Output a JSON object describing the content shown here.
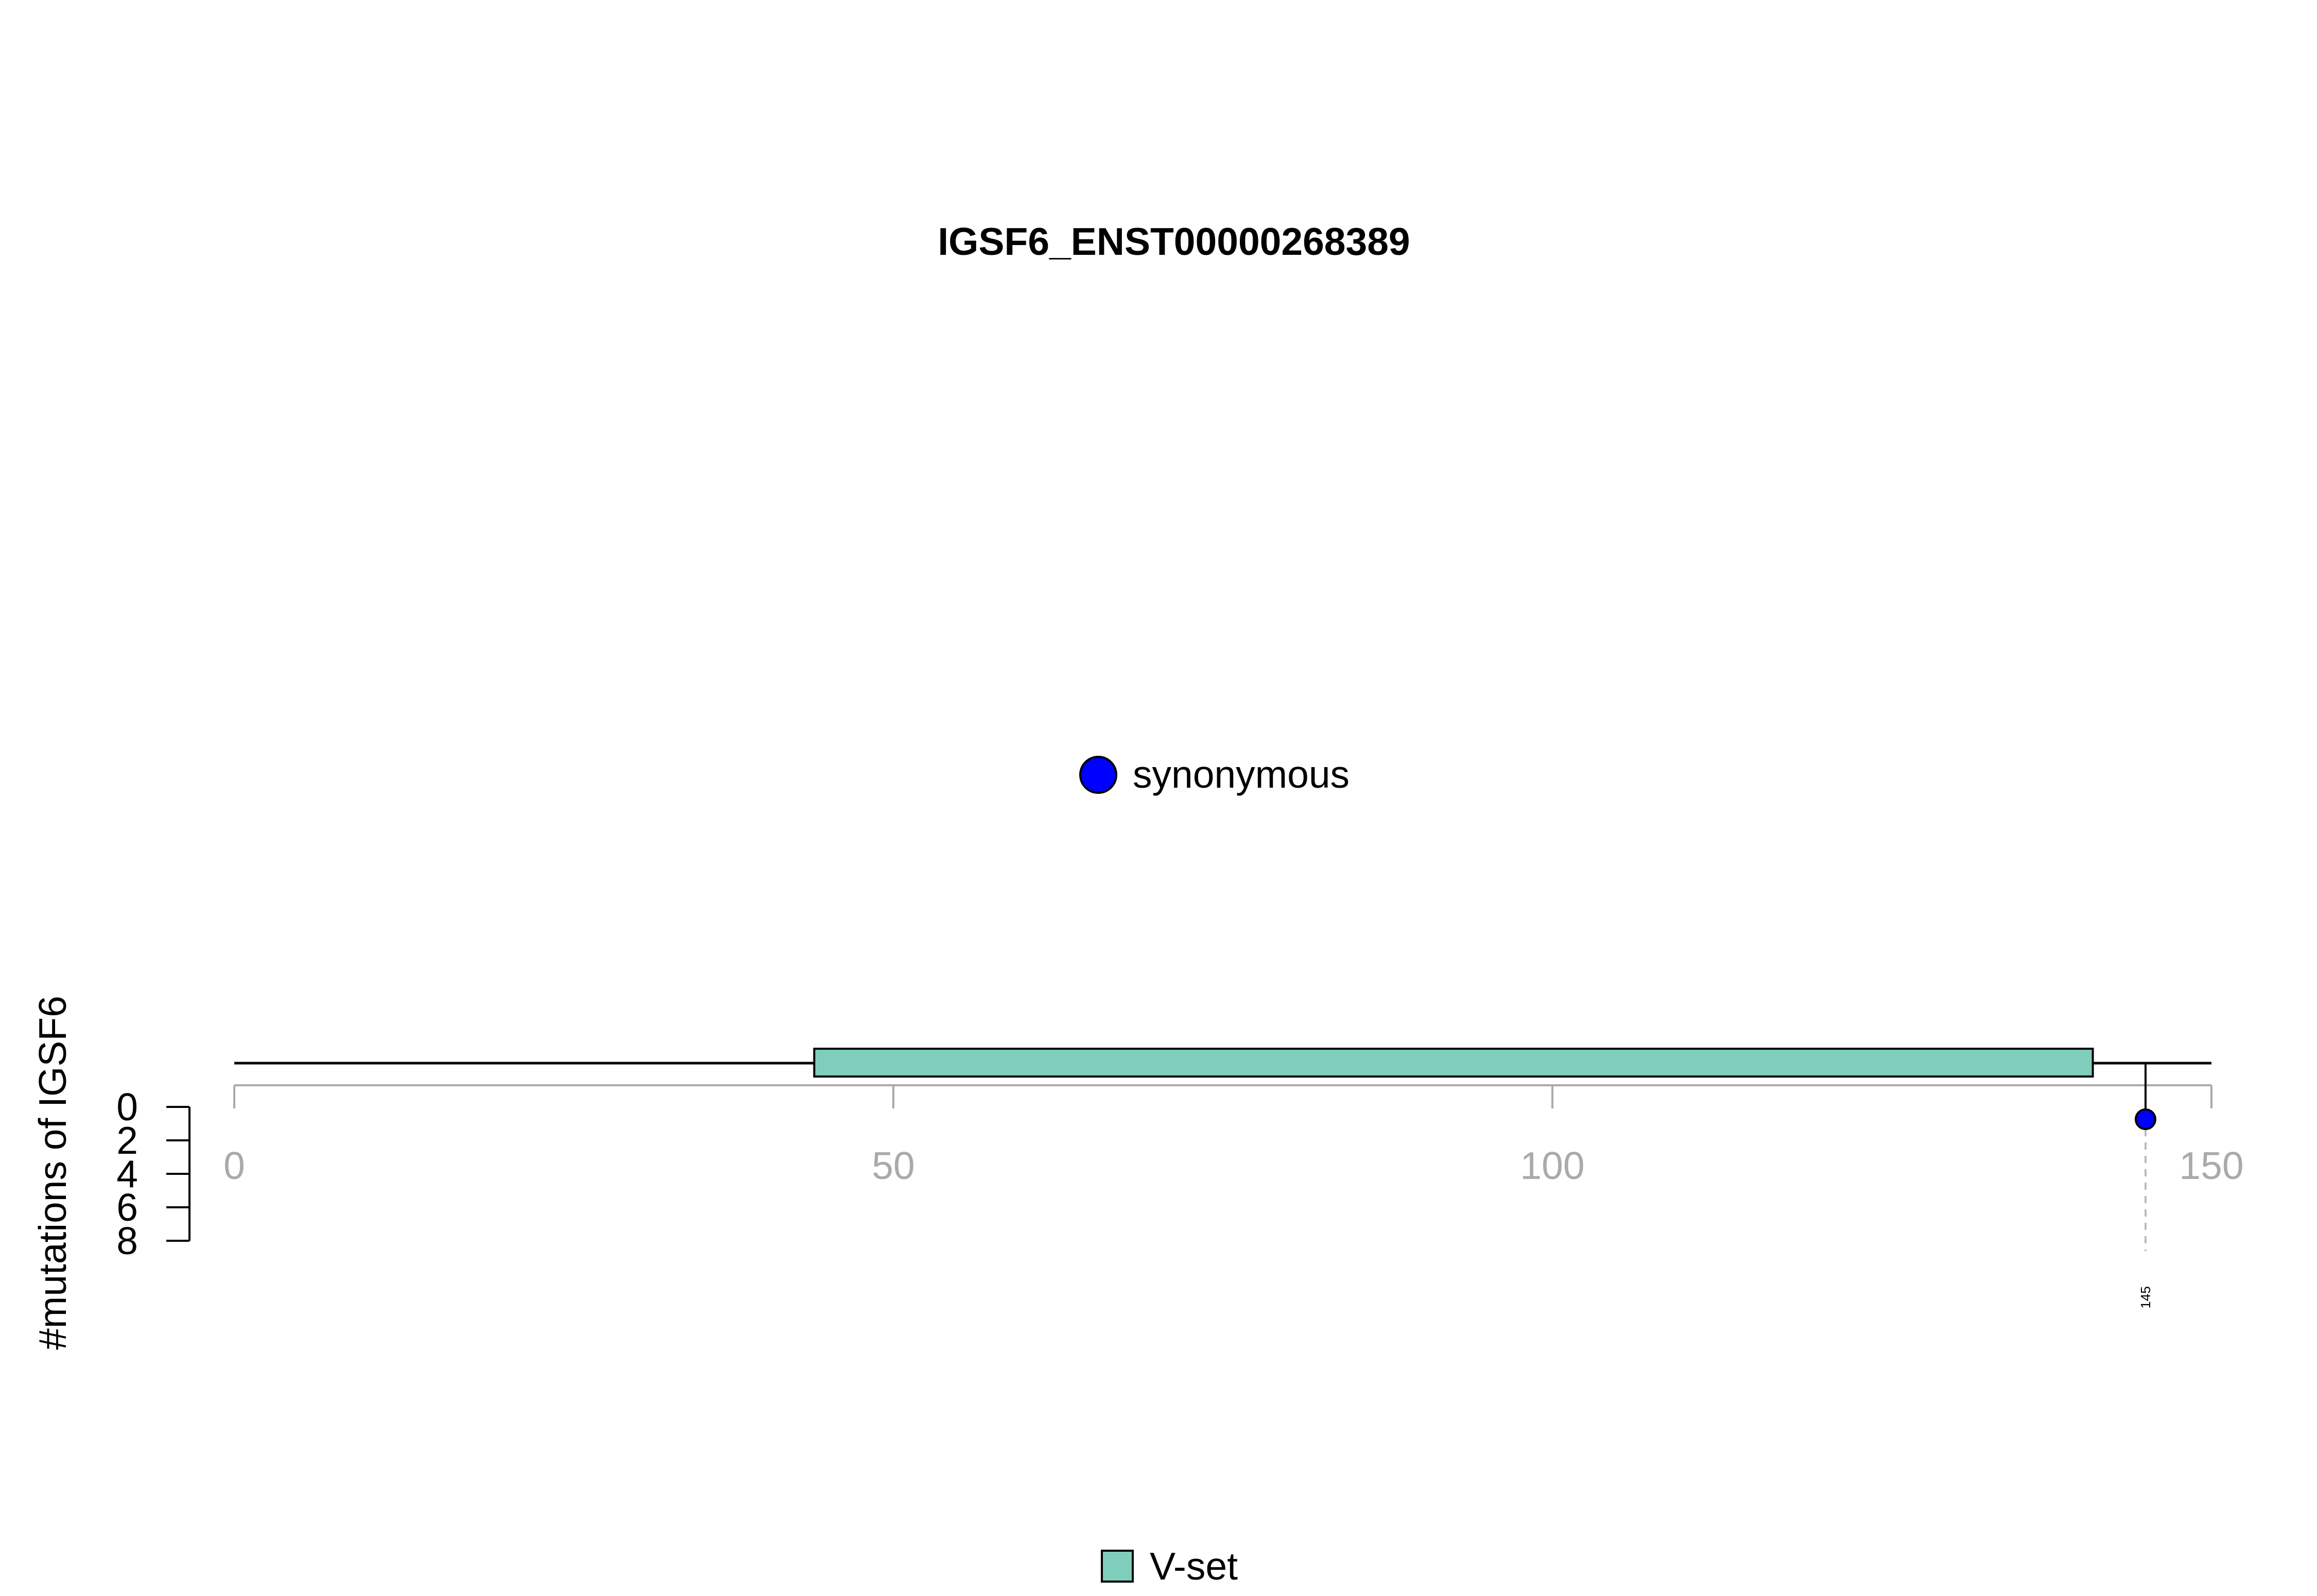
{
  "chart_data": {
    "type": "lollipop",
    "title": "IGSF6_ENST00000268389",
    "ylabel": "#mutations of IGSF6",
    "xlim": [
      0,
      150
    ],
    "x_ticks": [
      0,
      50,
      100,
      150
    ],
    "ylim": [
      0,
      8
    ],
    "y_ticks": [
      0,
      2,
      4,
      6,
      8
    ],
    "protein_length": 150,
    "domains": [
      {
        "name": "V-set",
        "start": 44,
        "end": 141,
        "color": "#7fcdbb"
      }
    ],
    "mutations": [
      {
        "position": 145,
        "count": 1,
        "type": "synonymous",
        "label": "145",
        "color": "#0000ff"
      }
    ],
    "mutation_legend": [
      {
        "label": "synonymous",
        "color": "#0000ff"
      }
    ],
    "domain_legend": [
      {
        "label": "V-set",
        "color": "#7fcdbb"
      }
    ]
  }
}
